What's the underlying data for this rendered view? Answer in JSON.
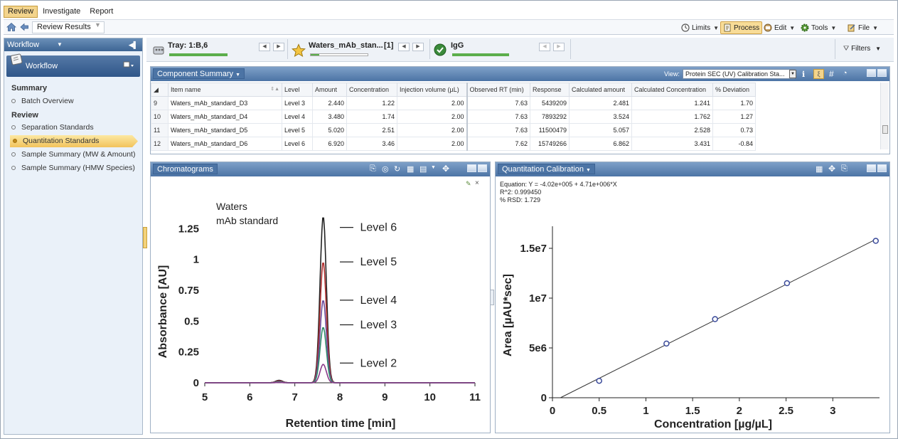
{
  "menu": {
    "tabs": [
      "Review",
      "Investigate",
      "Report"
    ],
    "active": "Review"
  },
  "address": {
    "breadcrumb": "Review Results"
  },
  "toolbar": {
    "limits": "Limits",
    "process": "Process",
    "edit": "Edit",
    "tools": "Tools",
    "file": "File"
  },
  "workflow": {
    "header": "Workflow",
    "panel_title": "Workflow",
    "summary_heading": "Summary",
    "summary_items": [
      "Batch Overview"
    ],
    "review_heading": "Review",
    "review_items": [
      "Separation Standards",
      "Quantitation Standards",
      "Sample Summary (MW & Amount)",
      "Sample Summary (HMW Species)"
    ],
    "selected": "Quantitation Standards"
  },
  "trays": {
    "tray1": "Tray: 1:B,6",
    "tray2": "Waters_mAb_stan...",
    "tray2_count": "[1]",
    "tray3": "IgG",
    "filters": "Filters"
  },
  "progress": {
    "tray1": 1.0,
    "tray2": 0.15,
    "tray3": 1.0
  },
  "component_summary": {
    "title": "Component Summary",
    "view_label": "View:",
    "view_value": "Protein SEC (UV) Calibration Sta...",
    "columns": [
      "Item name",
      "Level",
      "Amount",
      "Concentration",
      "Injection volume (µL)",
      "Observed RT (min)",
      "Response",
      "Calculated amount",
      "Calculated Concentration",
      "% Deviation"
    ],
    "rows": [
      {
        "idx": "9",
        "cells": [
          "Waters_mAb_standard_D3",
          "Level 3",
          "2.440",
          "1.22",
          "2.00",
          "7.63",
          "5439209",
          "2.481",
          "1.241",
          "1.70"
        ]
      },
      {
        "idx": "10",
        "cells": [
          "Waters_mAb_standard_D4",
          "Level 4",
          "3.480",
          "1.74",
          "2.00",
          "7.63",
          "7893292",
          "3.524",
          "1.762",
          "1.27"
        ]
      },
      {
        "idx": "11",
        "cells": [
          "Waters_mAb_standard_D5",
          "Level 5",
          "5.020",
          "2.51",
          "2.00",
          "7.63",
          "11500479",
          "5.057",
          "2.528",
          "0.73"
        ]
      },
      {
        "idx": "12",
        "cells": [
          "Waters_mAb_standard_D6",
          "Level 6",
          "6.920",
          "3.46",
          "2.00",
          "7.62",
          "15749266",
          "6.862",
          "3.431",
          "-0.84"
        ]
      }
    ]
  },
  "chromatograms": {
    "title": "Chromatograms"
  },
  "calibration": {
    "title": "Quantitation Calibration",
    "equation": "Equation: Y = -4.02e+005 + 4.71e+006*X",
    "r2": "R^2: 0.999450",
    "rsd": "% RSD: 1.729"
  },
  "colors": {
    "accent": "#4c74a5",
    "highlight": "#f3d48c",
    "chrom_level6": "#222222",
    "chrom_level5": "#b03030",
    "chrom_level4": "#6a4a9a",
    "chrom_level3": "#2e8a6a",
    "chrom_level2": "#8a3a8a",
    "cal_point": "#3a4a9a"
  },
  "chart_data": [
    {
      "type": "line",
      "title": "Waters mAb standard",
      "annotation": "Waters\nmAb standard",
      "xlabel": "Retention time [min]",
      "ylabel": "Absorbance [AU]",
      "xlim": [
        5,
        11
      ],
      "ylim": [
        0,
        1.35
      ],
      "xticks": [
        "5",
        "6",
        "7",
        "8",
        "9",
        "10",
        "11"
      ],
      "yticks": [
        "0",
        "0.25",
        "0.5",
        "0.75",
        "1",
        "1.25"
      ],
      "peak_rt": 7.63,
      "series": [
        {
          "name": "Level 6",
          "peak": 1.35
        },
        {
          "name": "Level 5",
          "peak": 0.98
        },
        {
          "name": "Level 4",
          "peak": 0.67
        },
        {
          "name": "Level 3",
          "peak": 0.45
        },
        {
          "name": "Level 2",
          "peak": 0.15
        }
      ],
      "minor_peak": {
        "rt": 6.65,
        "height": 0.02
      }
    },
    {
      "type": "scatter",
      "title": "Quantitation Calibration",
      "xlabel": "Concentration [µg/µL]",
      "ylabel": "Area [µAU*sec]",
      "xlim": [
        0,
        3.5
      ],
      "ylim": [
        0,
        16500000
      ],
      "xticks": [
        "0",
        "0.5",
        "1",
        "1.5",
        "2",
        "2.5",
        "3"
      ],
      "yticks": [
        "0",
        "5e6",
        "1e7",
        "1.5e7"
      ],
      "x": [
        0.5,
        1.22,
        1.74,
        2.51,
        3.46
      ],
      "y": [
        1700000,
        5439209,
        7893292,
        11500479,
        15749266
      ],
      "fit": {
        "intercept": -402000,
        "slope": 4710000
      }
    }
  ]
}
